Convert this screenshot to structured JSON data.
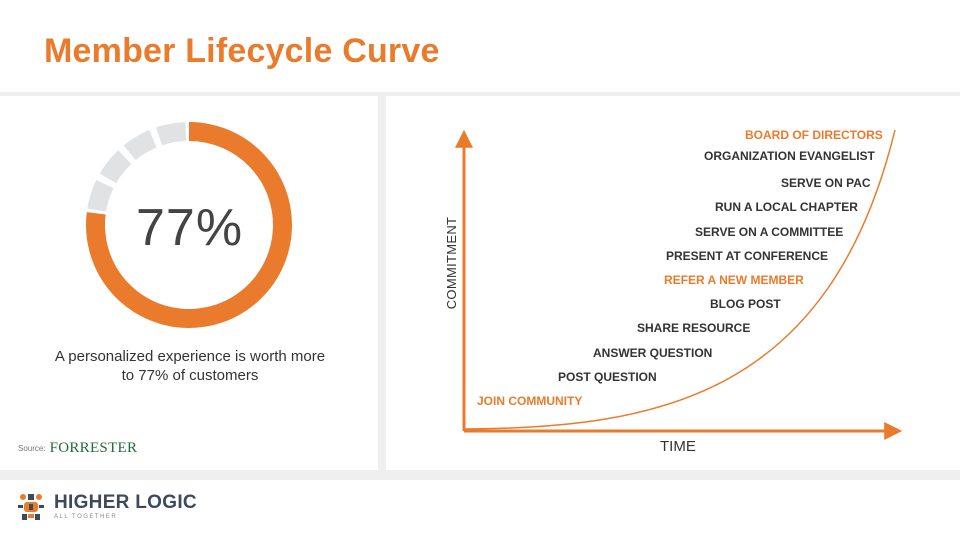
{
  "title": "Member Lifecycle Curve",
  "colors": {
    "accent": "#ea7b2c",
    "donut_rest": "#e1e2e4",
    "axis": "#ea7b2c",
    "text": "#333333"
  },
  "stat": {
    "percent_value": 77,
    "percent_label": "77%",
    "caption_line1": "A personalized experience is worth more",
    "caption_line2": "to 77% of customers"
  },
  "source": {
    "label": "Source:",
    "name": "FORRESTER"
  },
  "diagram": {
    "y_axis_label": "COMMITMENT",
    "x_axis_label": "TIME",
    "steps": [
      {
        "label": "JOIN COMMUNITY",
        "highlight": true
      },
      {
        "label": "POST QUESTION",
        "highlight": false
      },
      {
        "label": "ANSWER QUESTION",
        "highlight": false
      },
      {
        "label": "SHARE RESOURCE",
        "highlight": false
      },
      {
        "label": "BLOG POST",
        "highlight": false
      },
      {
        "label": "REFER A NEW MEMBER",
        "highlight": true
      },
      {
        "label": "PRESENT AT CONFERENCE",
        "highlight": false
      },
      {
        "label": "SERVE ON A COMMITTEE",
        "highlight": false
      },
      {
        "label": "RUN A LOCAL CHAPTER",
        "highlight": false
      },
      {
        "label": "SERVE ON PAC",
        "highlight": false
      },
      {
        "label": "ORGANIZATION EVANGELIST",
        "highlight": false
      },
      {
        "label": "BOARD OF DIRECTORS",
        "highlight": true
      }
    ]
  },
  "logo": {
    "name": "HIGHER LOGIC",
    "tagline": "ALL TOGETHER",
    "icon": "higher-logic-frog-icon"
  }
}
